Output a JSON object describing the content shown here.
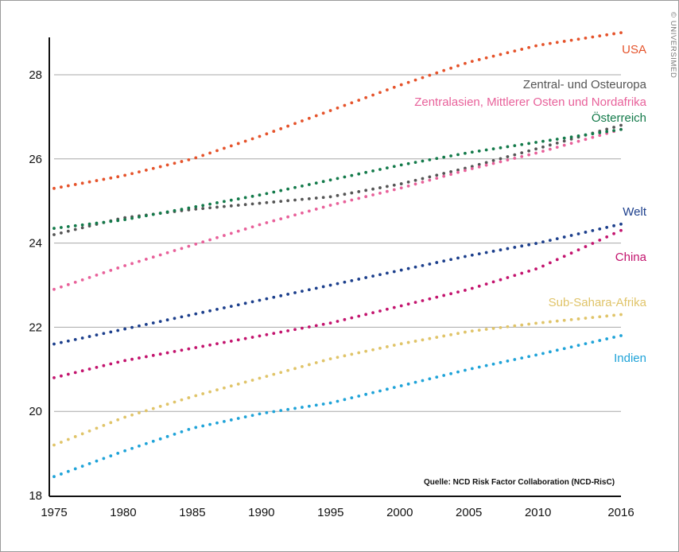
{
  "chart_data": {
    "type": "scatter",
    "title": "",
    "xlabel": "",
    "ylabel": "",
    "xlim": [
      1975,
      2016
    ],
    "ylim": [
      18,
      29
    ],
    "x_ticks": [
      "1975",
      "1980",
      "1985",
      "1990",
      "1995",
      "2000",
      "2005",
      "2010",
      "2016"
    ],
    "y_ticks": [
      "18",
      "20",
      "22",
      "24",
      "26",
      "28"
    ],
    "grid": "horizontal",
    "x": [
      1975,
      1980,
      1985,
      1990,
      1995,
      2000,
      2005,
      2010,
      2016
    ],
    "series": [
      {
        "name": "USA",
        "color": "#e5532b",
        "values": [
          25.3,
          25.6,
          26.0,
          26.55,
          27.15,
          27.75,
          28.3,
          28.7,
          29.0
        ]
      },
      {
        "name": "Zentral- und Osteuropa",
        "color": "#555555",
        "values": [
          24.2,
          24.6,
          24.8,
          24.95,
          25.1,
          25.4,
          25.8,
          26.25,
          26.8
        ]
      },
      {
        "name": "Zentralasien, Mittlerer Osten und Nordafrika",
        "color": "#e8619a",
        "values": [
          22.9,
          23.45,
          23.95,
          24.45,
          24.9,
          25.3,
          25.75,
          26.15,
          26.7
        ]
      },
      {
        "name": "Österreich",
        "color": "#137a4a",
        "values": [
          24.35,
          24.55,
          24.85,
          25.15,
          25.5,
          25.85,
          26.15,
          26.4,
          26.7
        ]
      },
      {
        "name": "Welt",
        "color": "#1c3f8c",
        "values": [
          21.6,
          21.95,
          22.3,
          22.65,
          23.0,
          23.35,
          23.7,
          24.0,
          24.45
        ]
      },
      {
        "name": "China",
        "color": "#c3146e",
        "values": [
          20.8,
          21.2,
          21.5,
          21.8,
          22.1,
          22.5,
          22.9,
          23.4,
          24.3
        ]
      },
      {
        "name": "Sub-Sahara-Afrika",
        "color": "#e0c469",
        "values": [
          19.2,
          19.85,
          20.35,
          20.8,
          21.25,
          21.6,
          21.9,
          22.1,
          22.3
        ]
      },
      {
        "name": "Indien",
        "color": "#1fa3d8",
        "values": [
          18.45,
          19.05,
          19.6,
          19.95,
          20.2,
          20.6,
          21.0,
          21.35,
          21.8
        ]
      }
    ],
    "label_years": [
      2016,
      2016,
      2016,
      2016,
      2016,
      2016,
      2016,
      2016
    ],
    "source": "Quelle: NCD Risk Factor Collaboration (NCD-RisC)",
    "copyright": "© UNIVERSIMED"
  }
}
